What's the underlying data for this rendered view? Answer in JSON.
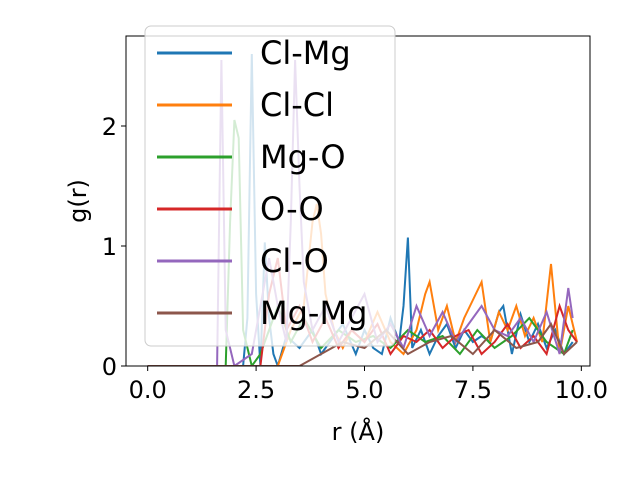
{
  "chart_data": {
    "type": "line",
    "xlabel": "r (Å)",
    "ylabel": "g(r)",
    "xlim": [
      -0.5,
      10.2
    ],
    "ylim": [
      0,
      2.75
    ],
    "xticks": [
      "0.0",
      "2.5",
      "5.0",
      "7.5",
      "10.0"
    ],
    "xtick_values": [
      0,
      2.5,
      5,
      7.5,
      10
    ],
    "yticks": [
      "0",
      "1",
      "2"
    ],
    "ytick_values": [
      0,
      1,
      2
    ],
    "legend_position": "upper-left",
    "series": [
      {
        "name": "Cl-Mg",
        "color": "#1f77b4",
        "x": [
          0,
          1.0,
          2.2,
          2.3,
          2.4,
          2.5,
          2.6,
          2.7,
          2.8,
          2.9,
          3.0,
          3.2,
          3.5,
          3.8,
          4.0,
          4.2,
          4.5,
          4.8,
          5.0,
          5.2,
          5.4,
          5.6,
          5.8,
          5.9,
          6.0,
          6.1,
          6.3,
          6.5,
          6.7,
          6.9,
          7.1,
          7.3,
          7.5,
          7.7,
          7.9,
          8.1,
          8.2,
          8.4,
          8.6,
          8.8,
          9.0,
          9.2,
          9.4,
          9.6,
          9.8
        ],
        "y": [
          0,
          0,
          0,
          0.4,
          2.6,
          0.6,
          0,
          1.03,
          0.4,
          0.1,
          0,
          0.25,
          0.15,
          0.3,
          0.1,
          0.2,
          0.35,
          0.1,
          0.3,
          0.15,
          0.1,
          0.4,
          0.2,
          0.5,
          1.07,
          0.15,
          0.3,
          0.1,
          0.25,
          0.35,
          0.15,
          0.3,
          0.2,
          0.25,
          0.2,
          0.45,
          0.5,
          0.1,
          0.43,
          0.2,
          0.35,
          0.15,
          0.3,
          0.1,
          0.2
        ]
      },
      {
        "name": "Cl-Cl",
        "color": "#ff7f0e",
        "x": [
          0,
          1.0,
          3.0,
          3.3,
          3.6,
          3.8,
          3.9,
          4.0,
          4.1,
          4.3,
          4.5,
          4.7,
          5.0,
          5.3,
          5.6,
          5.9,
          6.2,
          6.4,
          6.5,
          6.7,
          6.9,
          7.1,
          7.3,
          7.5,
          7.7,
          7.9,
          8.1,
          8.3,
          8.5,
          8.7,
          8.9,
          9.1,
          9.3,
          9.5,
          9.7,
          9.9
        ],
        "y": [
          0,
          0,
          0,
          0.3,
          0.5,
          1.2,
          1.35,
          1.1,
          0.6,
          0.3,
          0.15,
          0.3,
          0.2,
          0.45,
          0.2,
          0.1,
          0.3,
          0.6,
          0.7,
          0.3,
          0.5,
          0.2,
          0.4,
          0.55,
          0.7,
          0.2,
          0.45,
          0.3,
          0.5,
          0.25,
          0.4,
          0.2,
          0.85,
          0.1,
          0.5,
          0.2
        ]
      },
      {
        "name": "Mg-O",
        "color": "#2ca02c",
        "x": [
          0,
          1.0,
          1.8,
          1.9,
          2.0,
          2.1,
          2.2,
          2.4,
          2.6,
          2.8,
          3.0,
          3.3,
          3.6,
          4.0,
          4.4,
          4.8,
          5.2,
          5.6,
          6.0,
          6.4,
          6.8,
          7.2,
          7.6,
          8.0,
          8.4,
          8.8,
          9.2,
          9.6,
          9.8
        ],
        "y": [
          0,
          0,
          0,
          1.2,
          2.05,
          1.9,
          0.3,
          0,
          0.1,
          0.3,
          0.5,
          0.2,
          0.4,
          0.15,
          0.3,
          0.2,
          0.25,
          0.15,
          0.3,
          0.2,
          0.25,
          0.1,
          0.3,
          0.15,
          0.25,
          0.4,
          0.2,
          0.1,
          0.3
        ]
      },
      {
        "name": "O-O",
        "color": "#d62728",
        "x": [
          0,
          1.0,
          2.6,
          2.8,
          3.0,
          3.2,
          3.5,
          3.8,
          4.1,
          4.4,
          4.7,
          5.0,
          5.3,
          5.6,
          5.9,
          6.2,
          6.5,
          6.8,
          7.1,
          7.4,
          7.7,
          8.0,
          8.3,
          8.6,
          8.9,
          9.2,
          9.5,
          9.7,
          9.9
        ],
        "y": [
          0,
          0,
          0,
          0.6,
          0.9,
          0.3,
          0.5,
          0.2,
          0.4,
          0.15,
          0.3,
          0.2,
          0.35,
          0.1,
          0.25,
          0.2,
          0.3,
          0.15,
          0.25,
          0.3,
          0.1,
          0.2,
          0.35,
          0.15,
          0.25,
          0.1,
          0.5,
          0.3,
          0.2
        ]
      },
      {
        "name": "Cl-O",
        "color": "#9467bd",
        "x": [
          0,
          1.0,
          1.6,
          1.7,
          1.8,
          2.0,
          2.4,
          2.8,
          3.0,
          3.2,
          3.3,
          3.4,
          3.5,
          3.6,
          3.8,
          4.1,
          4.4,
          4.7,
          5.0,
          5.3,
          5.6,
          5.9,
          6.2,
          6.5,
          6.8,
          7.1,
          7.4,
          7.7,
          8.0,
          8.3,
          8.6,
          8.9,
          9.2,
          9.5,
          9.7,
          9.8
        ],
        "y": [
          0,
          0,
          0,
          2.55,
          0.3,
          0,
          0.1,
          0.9,
          0.5,
          0.2,
          1.2,
          2.55,
          1.5,
          0.7,
          0.3,
          0.5,
          0.2,
          0.4,
          0.6,
          0.2,
          0.35,
          0.15,
          0.5,
          0.25,
          0.45,
          0.2,
          0.35,
          0.5,
          0.3,
          0.25,
          0.4,
          0.2,
          0.45,
          0.1,
          0.65,
          0.4
        ]
      },
      {
        "name": "Mg-Mg",
        "color": "#8c564b",
        "x": [
          0,
          1.0,
          3.5,
          4.0,
          4.5,
          5.0,
          5.5,
          6.0,
          6.5,
          7.0,
          7.5,
          8.0,
          8.5,
          9.0,
          9.3,
          9.6,
          9.9
        ],
        "y": [
          0,
          0,
          0,
          0.1,
          0.2,
          0.15,
          0.3,
          0.1,
          0.2,
          0.25,
          0.1,
          0.3,
          0.15,
          0.2,
          0.35,
          0.1,
          0.2
        ]
      }
    ]
  }
}
